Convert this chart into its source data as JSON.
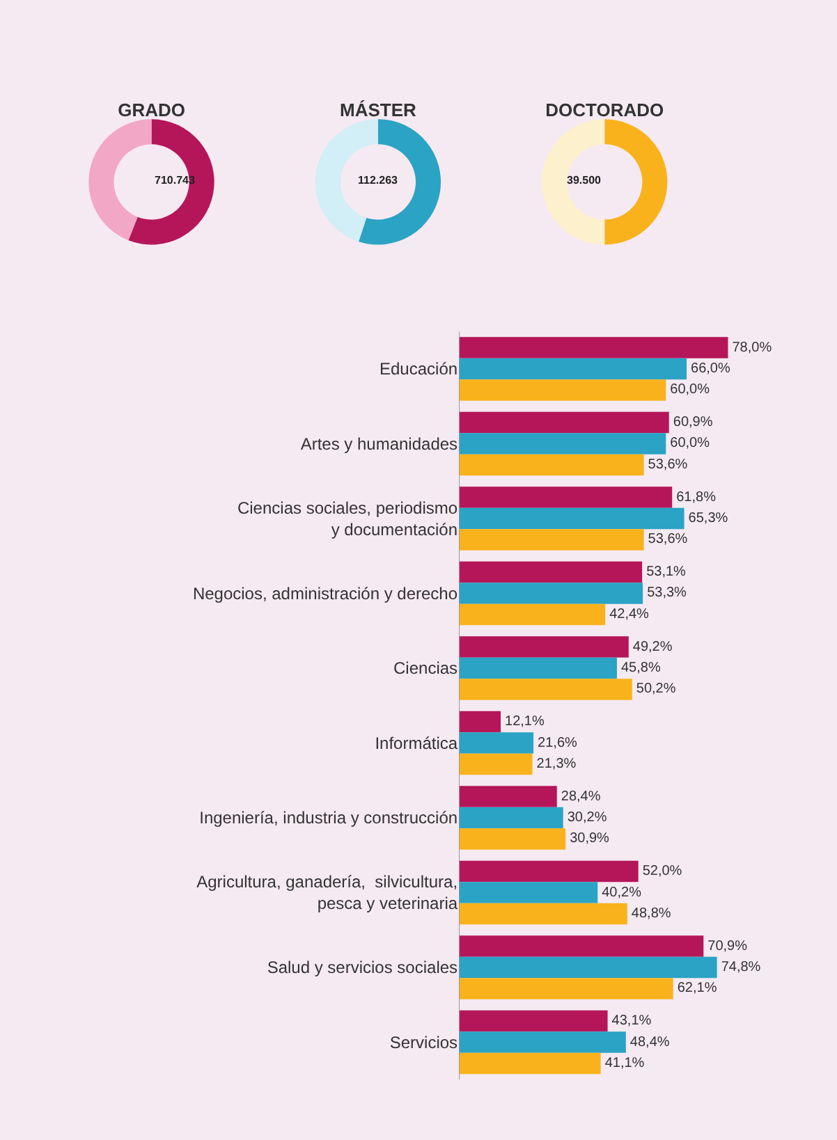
{
  "chart_data": [
    {
      "type": "donut",
      "title": "GRADO",
      "categories": [
        null,
        null
      ],
      "values": [
        56,
        44
      ],
      "colors": [
        "#b5165a",
        "#f2a7c6"
      ],
      "annotations": [
        "710.743"
      ]
    },
    {
      "type": "donut",
      "title": "MÁSTER",
      "categories": [
        null,
        null
      ],
      "values": [
        55,
        45
      ],
      "colors": [
        "#2aa3c4",
        "#d2eef6"
      ],
      "annotations": [
        "112.263"
      ]
    },
    {
      "type": "donut",
      "title": "DOCTORADO",
      "categories": [
        null,
        null
      ],
      "values": [
        50,
        50
      ],
      "colors": [
        "#f9b21b",
        "#fdf0cc"
      ],
      "annotations": [
        "39.500"
      ]
    },
    {
      "type": "bar",
      "orientation": "horizontal",
      "tick_labels": "y",
      "categories": [
        "Educación",
        "Artes y humanidades",
        "Ciencias sociales, periodismo\ny documentación",
        "Negocios, administración y derecho",
        "Ciencias",
        "Informática",
        "Ingeniería, industria y construcción",
        "Agricultura, ganadería,  silvicultura,\npesca y veterinaria",
        "Salud y servicios sociales",
        "Servicios"
      ],
      "series": [
        {
          "color": "#b5165a",
          "values": [
            78.0,
            60.9,
            61.8,
            53.1,
            49.2,
            12.1,
            28.4,
            52.0,
            70.9,
            43.1
          ],
          "value_labels": [
            "78,0%",
            "60,9%",
            "61,8%",
            "53,1%",
            "49,2%",
            "12,1%",
            "28,4%",
            "52,0%",
            "70,9%",
            "43,1%"
          ]
        },
        {
          "color": "#2aa3c4",
          "values": [
            66.0,
            60.0,
            65.3,
            53.3,
            45.8,
            21.6,
            30.2,
            40.2,
            74.8,
            48.4
          ],
          "value_labels": [
            "66,0%",
            "60,0%",
            "65,3%",
            "53,3%",
            "45,8%",
            "21,6%",
            "30,2%",
            "40,2%",
            "74,8%",
            "48,4%"
          ]
        },
        {
          "color": "#f9b21b",
          "values": [
            60.0,
            53.6,
            53.6,
            42.4,
            50.2,
            21.3,
            30.9,
            48.8,
            62.1,
            41.1
          ],
          "value_labels": [
            "60,0%",
            "53,6%",
            "53,6%",
            "42,4%",
            "50,2%",
            "21,3%",
            "30,9%",
            "48,8%",
            "62,1%",
            "41,1%"
          ]
        }
      ]
    }
  ]
}
